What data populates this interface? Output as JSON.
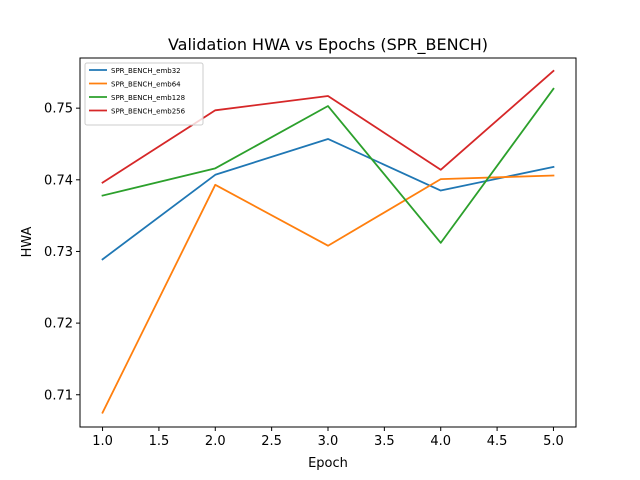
{
  "chart_data": {
    "type": "line",
    "title": "Validation HWA vs Epochs (SPR_BENCH)",
    "xlabel": "Epoch",
    "ylabel": "HWA",
    "xlim": [
      0.8,
      5.2
    ],
    "ylim": [
      0.7055,
      0.757
    ],
    "xticks": [
      1.0,
      1.5,
      2.0,
      2.5,
      3.0,
      3.5,
      4.0,
      4.5,
      5.0
    ],
    "xtick_labels": [
      "1.0",
      "1.5",
      "2.0",
      "2.5",
      "3.0",
      "3.5",
      "4.0",
      "4.5",
      "5.0"
    ],
    "yticks": [
      0.71,
      0.72,
      0.73,
      0.74,
      0.75
    ],
    "ytick_labels": [
      "0.71",
      "0.72",
      "0.73",
      "0.74",
      "0.75"
    ],
    "grid": false,
    "legend_position": "top-left",
    "x": [
      1,
      2,
      3,
      4,
      5
    ],
    "series": [
      {
        "name": "SPR_BENCH_emb32",
        "color": "#1f77b4",
        "values": [
          0.7289,
          0.7407,
          0.7457,
          0.7385,
          0.7418
        ]
      },
      {
        "name": "SPR_BENCH_emb64",
        "color": "#ff7f0e",
        "values": [
          0.7075,
          0.7393,
          0.7308,
          0.7401,
          0.7406
        ]
      },
      {
        "name": "SPR_BENCH_emb128",
        "color": "#2ca02c",
        "values": [
          0.7378,
          0.7416,
          0.7503,
          0.7312,
          0.7527
        ]
      },
      {
        "name": "SPR_BENCH_emb256",
        "color": "#d62728",
        "values": [
          0.7396,
          0.7497,
          0.7517,
          0.7414,
          0.7552
        ]
      }
    ]
  }
}
